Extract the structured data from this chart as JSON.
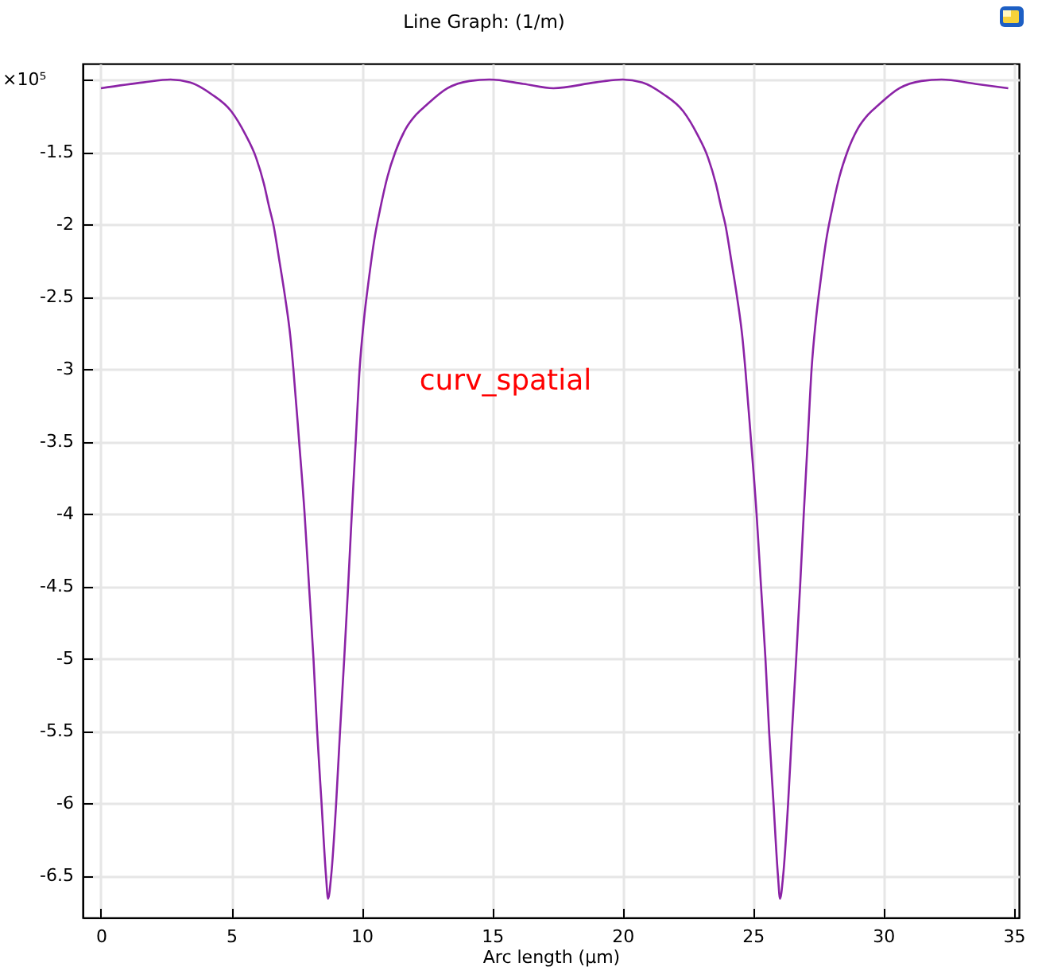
{
  "chart_data": {
    "type": "line",
    "title": "Line Graph:  (1/m)",
    "xlabel": "Arc length (µm)",
    "ylabel": "×10⁵",
    "annotations": [
      "curv_spatial"
    ],
    "x": [
      0,
      1.63,
      2.67,
      3.43,
      4.23,
      5.0,
      5.54,
      5.95,
      6.25,
      6.45,
      6.61,
      6.85,
      7.06,
      7.26,
      7.38,
      7.6,
      7.81,
      7.98,
      8.15,
      8.29,
      8.46,
      8.63,
      8.71,
      8.83,
      9.02,
      9.17,
      9.33,
      9.48,
      9.62,
      9.77,
      9.92,
      10.08,
      10.28,
      10.48,
      10.69,
      10.99,
      11.29,
      11.69,
      12.1,
      12.46,
      13.29,
      14.13,
      14.9,
      16.2,
      17.35,
      18.96,
      20.0,
      20.76,
      21.56,
      22.33,
      22.87,
      23.28,
      23.58,
      23.78,
      23.94,
      24.18,
      24.39,
      24.59,
      24.71,
      24.93,
      25.14,
      25.31,
      25.48,
      25.62,
      25.79,
      25.96,
      26.04,
      26.16,
      26.35,
      26.5,
      26.66,
      26.81,
      26.95,
      27.1,
      27.25,
      27.41,
      27.61,
      27.81,
      28.02,
      28.32,
      28.62,
      29.02,
      29.43,
      29.79,
      30.62,
      31.46,
      32.23,
      33.53,
      34.79
    ],
    "series": [
      {
        "color": "#8b23a6",
        "values": [
          -1.06,
          -1.02,
          -1.0,
          -1.02,
          -1.1,
          -1.22,
          -1.38,
          -1.54,
          -1.72,
          -1.88,
          -2.0,
          -2.26,
          -2.5,
          -2.77,
          -3.0,
          -3.5,
          -4.0,
          -4.5,
          -5.0,
          -5.5,
          -6.0,
          -6.5,
          -6.66,
          -6.5,
          -6.0,
          -5.5,
          -5.0,
          -4.5,
          -4.0,
          -3.5,
          -3.0,
          -2.67,
          -2.37,
          -2.11,
          -1.91,
          -1.67,
          -1.5,
          -1.34,
          -1.24,
          -1.18,
          -1.06,
          -1.01,
          -1.0,
          -1.03,
          -1.06,
          -1.02,
          -1.0,
          -1.02,
          -1.1,
          -1.22,
          -1.38,
          -1.54,
          -1.72,
          -1.88,
          -2.0,
          -2.26,
          -2.5,
          -2.77,
          -3.0,
          -3.5,
          -4.0,
          -4.5,
          -5.0,
          -5.5,
          -6.0,
          -6.5,
          -6.66,
          -6.5,
          -6.0,
          -5.5,
          -5.0,
          -4.5,
          -4.0,
          -3.5,
          -3.0,
          -2.67,
          -2.37,
          -2.11,
          -1.91,
          -1.67,
          -1.5,
          -1.34,
          -1.24,
          -1.18,
          -1.06,
          -1.01,
          -1.0,
          -1.03,
          -1.06
        ]
      }
    ],
    "xlim": [
      -0.7,
      35.2
    ],
    "ylim": [
      -6.79,
      -0.89
    ],
    "xticks": [
      0,
      5,
      10,
      15,
      20,
      25,
      30,
      35
    ],
    "yticks": [
      {
        "value": -1,
        "label": null
      },
      -1.5,
      -2,
      -2.5,
      -3,
      -3.5,
      -4,
      -4.5,
      -5,
      -5.5,
      -6,
      -6.5
    ],
    "grid": true
  }
}
